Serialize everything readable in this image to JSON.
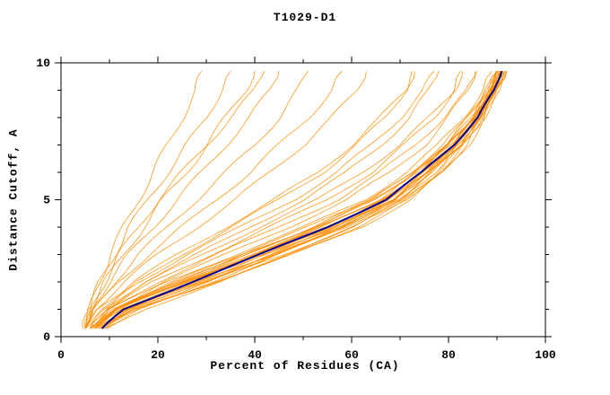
{
  "chart_data": {
    "type": "line",
    "title": "T1029-D1",
    "xlabel": "Percent of Residues (CA)",
    "ylabel": "Distance Cutoff, A",
    "xlim": [
      0,
      100
    ],
    "ylim": [
      0,
      10
    ],
    "xticks_major": [
      0,
      20,
      40,
      60,
      80,
      100
    ],
    "xticks_minor": [
      10,
      30,
      50,
      70,
      90
    ],
    "yticks_major": [
      0,
      5,
      10
    ],
    "yticks_minor": [
      1,
      2,
      3,
      4,
      6,
      7,
      8,
      9
    ],
    "grid": false,
    "legend": "none",
    "background": "#ffffff",
    "axis_color": "#000000",
    "y_anchors": [
      0.3,
      1,
      2,
      3,
      4,
      5,
      6,
      7,
      8,
      9,
      9.7
    ],
    "highlight_series": {
      "name": "best-model",
      "color": "#000099",
      "xs": [
        8.5,
        13,
        27,
        41,
        55,
        67,
        74.5,
        81,
        86,
        89.5,
        91
      ]
    },
    "prediction_series": {
      "name": "predictions",
      "color": "#ff8c00",
      "series_xs": [
        [
          7,
          11,
          24,
          38,
          52,
          64,
          72,
          79,
          84,
          88,
          90
        ],
        [
          6,
          12,
          26,
          40,
          54,
          66,
          74,
          80,
          85,
          89,
          91
        ],
        [
          8,
          14,
          28,
          42,
          56,
          68,
          75,
          81,
          86,
          89.5,
          91.5
        ],
        [
          9,
          15,
          30,
          44,
          58,
          69,
          76,
          82,
          86.5,
          90,
          92
        ],
        [
          7,
          13,
          27,
          41,
          55,
          67,
          74.5,
          81,
          85.5,
          89,
          90.5
        ],
        [
          6,
          11,
          25,
          39,
          53,
          65,
          73,
          80,
          84.5,
          88.5,
          90
        ],
        [
          8,
          13,
          29,
          43,
          57,
          68.5,
          75.5,
          81.5,
          86,
          89,
          91
        ],
        [
          9,
          16,
          31,
          45,
          59,
          70,
          77,
          82.5,
          87,
          90,
          92
        ],
        [
          7,
          12,
          26,
          42,
          57,
          69,
          76,
          82,
          86,
          89,
          90.5
        ],
        [
          8,
          14,
          30,
          46,
          60,
          71,
          78,
          83,
          87,
          90,
          91.5
        ],
        [
          6,
          10,
          22,
          36,
          50,
          63,
          71,
          78,
          83,
          87,
          89
        ],
        [
          7,
          12,
          25,
          40,
          55,
          67,
          75,
          81,
          85,
          88,
          90
        ],
        [
          8,
          15,
          32,
          48,
          62,
          72,
          79,
          84,
          87.5,
          90,
          92
        ],
        [
          9,
          17,
          33,
          47,
          61,
          71.5,
          78.5,
          83.5,
          87,
          89.5,
          91
        ],
        [
          7,
          13,
          28,
          44,
          58,
          70,
          77,
          82,
          86,
          89,
          90.5
        ],
        [
          6,
          11,
          24,
          37,
          51,
          64,
          73,
          80,
          85,
          88.5,
          90
        ],
        [
          6,
          10,
          20,
          32,
          45,
          57,
          66,
          73,
          79,
          84,
          86
        ],
        [
          7,
          11,
          21,
          34,
          47,
          59,
          68,
          75,
          80,
          84,
          85.5
        ],
        [
          5,
          9,
          18,
          29,
          41,
          53,
          62,
          70,
          76,
          81,
          83
        ],
        [
          6,
          10,
          19,
          31,
          43,
          55,
          64,
          71,
          77,
          81,
          82.5
        ],
        [
          5,
          8,
          16,
          26,
          37,
          48,
          57,
          64,
          70,
          75,
          77
        ],
        [
          6,
          9,
          17,
          28,
          39,
          50,
          59,
          66,
          72,
          76,
          78
        ],
        [
          5,
          8,
          15,
          24,
          34,
          44,
          53,
          60,
          66,
          71,
          73
        ],
        [
          6,
          9,
          16,
          25,
          35,
          45,
          54,
          61,
          67,
          71,
          72.5
        ],
        [
          5,
          7,
          12,
          18,
          25,
          32,
          39,
          45,
          51,
          56,
          58
        ],
        [
          5,
          7,
          11,
          16,
          22,
          28,
          34,
          40,
          45,
          49,
          51
        ],
        [
          5,
          6,
          10,
          14,
          19,
          24,
          29,
          34,
          39,
          43,
          45
        ],
        [
          5,
          6,
          9,
          13,
          17,
          21,
          26,
          30,
          34,
          38,
          40
        ],
        [
          5,
          6,
          8,
          11,
          14,
          18,
          22,
          26,
          30,
          33,
          35
        ],
        [
          5,
          6,
          8,
          10,
          13,
          16,
          19,
          22,
          25,
          28,
          29
        ],
        [
          4.5,
          6,
          9,
          12,
          16,
          20,
          25,
          30,
          35,
          40,
          42
        ],
        [
          5,
          7,
          13,
          20,
          28,
          36,
          43,
          50,
          56,
          61,
          63
        ],
        [
          7.5,
          13.5,
          27.5,
          42,
          56.5,
          68,
          75,
          81,
          85.5,
          89,
          90.8
        ],
        [
          6.5,
          11.5,
          25.5,
          39.5,
          54,
          66.5,
          74,
          80.5,
          85,
          88.8,
          90.3
        ],
        [
          8.5,
          14.5,
          29.5,
          44.5,
          58.5,
          69.5,
          76.5,
          82,
          86.3,
          89.3,
          91.2
        ],
        [
          7,
          12.5,
          26.5,
          41.5,
          56,
          67.5,
          75,
          81.2,
          85.8,
          89.1,
          90.7
        ],
        [
          6,
          10.5,
          23,
          37.5,
          52,
          64.5,
          72.5,
          79.5,
          84.2,
          88,
          89.8
        ],
        [
          8,
          13.5,
          28.5,
          43.5,
          57.5,
          69,
          76,
          81.8,
          86.2,
          89.4,
          91
        ],
        [
          9.5,
          16.5,
          32,
          46.5,
          60.5,
          71,
          78,
          83.2,
          87.2,
          90.2,
          91.8
        ],
        [
          7,
          12,
          24.5,
          38.5,
          53,
          65.5,
          73.5,
          80.2,
          84.8,
          88.4,
          90.2
        ]
      ]
    }
  }
}
